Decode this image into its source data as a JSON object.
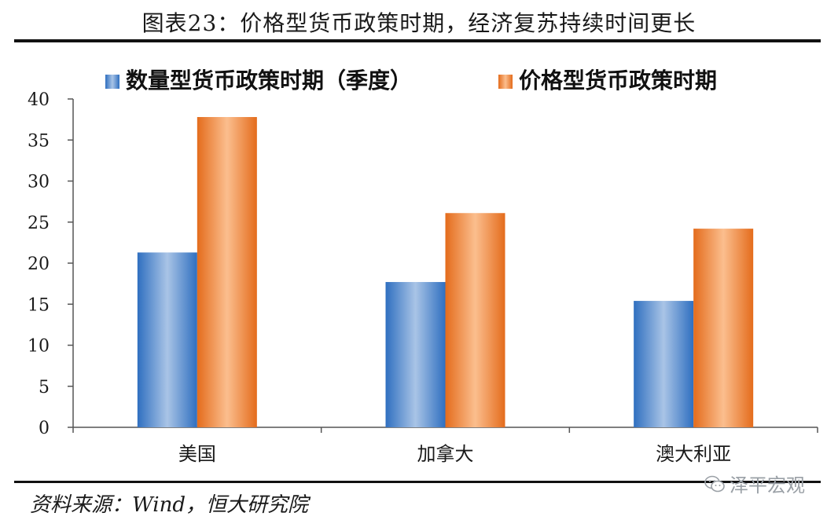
{
  "title": "图表23：价格型货币政策时期，经济复苏持续时间更长",
  "source": "资料来源：Wind，恒大研究院",
  "watermark": {
    "text": "泽平宏观",
    "icon": "wechat-icon"
  },
  "chart_data": {
    "type": "bar",
    "categories": [
      "美国",
      "加拿大",
      "澳大利亚"
    ],
    "series": [
      {
        "name": "数量型货币政策时期（季度）",
        "values": [
          21.3,
          17.7,
          15.4
        ],
        "color": "#2f6fc0",
        "highlight": "#a9c4e6"
      },
      {
        "name": "价格型货币政策时期",
        "values": [
          37.8,
          26.1,
          24.2
        ],
        "color": "#e46c1c",
        "highlight": "#fbbe8e"
      }
    ],
    "ylim": [
      0,
      40
    ],
    "yticks": [
      0,
      5,
      10,
      15,
      20,
      25,
      30,
      35,
      40
    ],
    "legend": "top",
    "grid": false
  }
}
